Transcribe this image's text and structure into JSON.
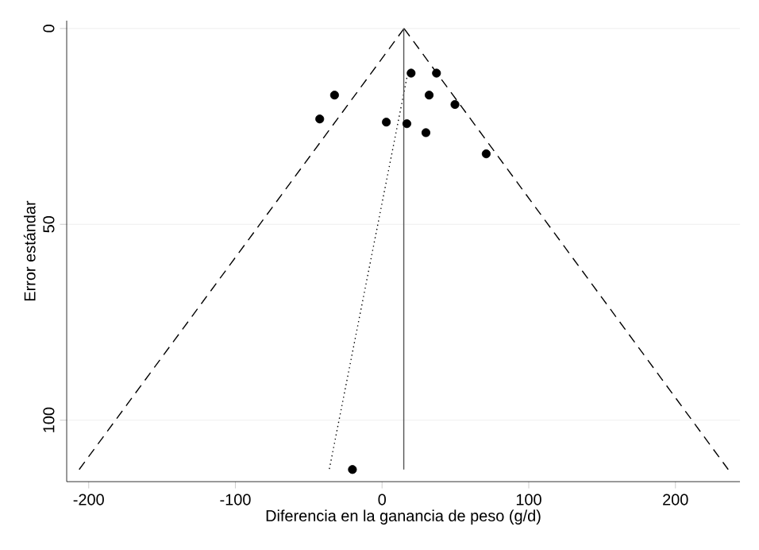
{
  "chart_data": {
    "type": "scatter",
    "xlabel": "Diferencia en la ganancia de peso (g/d)",
    "ylabel": "Error estándar",
    "xlim": [
      -215,
      244
    ],
    "ylim": [
      115.7,
      -2
    ],
    "xticks": [
      -200,
      -100,
      0,
      100,
      200
    ],
    "yticks": [
      0,
      50,
      100
    ],
    "grid": "y",
    "series": [
      {
        "type": "line",
        "color": "#000000",
        "line_style": "dashed",
        "marker": "none",
        "x": [
          -206.5,
          15
        ],
        "values": [
          112.6,
          0
        ]
      },
      {
        "type": "line",
        "color": "#000000",
        "line_style": "dashed",
        "marker": "none",
        "x": [
          15,
          236
        ],
        "values": [
          0,
          112.6
        ]
      },
      {
        "type": "line",
        "color": "#000000",
        "line_style": "dotted",
        "marker": "none",
        "x": [
          16.9,
          -36
        ],
        "values": [
          12.6,
          112.6
        ]
      },
      {
        "type": "line",
        "color": "#555555",
        "line_style": "solid",
        "marker": "none",
        "x": [
          14.8,
          14.8
        ],
        "values": [
          0,
          112.6
        ]
      },
      {
        "color": "#000000",
        "marker": "circle",
        "x": [
          19.8,
          37.1,
          -32.4,
          32.1,
          49.7,
          -42.5,
          2.9,
          16.9,
          29.9,
          71.0,
          -20.2
        ],
        "values": [
          11.4,
          11.4,
          17.0,
          17.0,
          19.4,
          23.1,
          23.9,
          24.3,
          26.6,
          32.0,
          112.6
        ]
      }
    ]
  }
}
